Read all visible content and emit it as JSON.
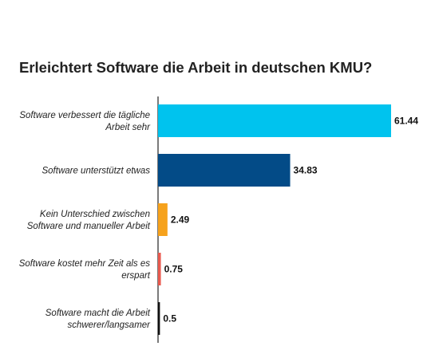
{
  "chart_data": {
    "type": "bar",
    "orientation": "horizontal",
    "title": "Erleichtert Software die Arbeit in deutschen KMU?",
    "categories": [
      [
        "Software verbessert die tägliche",
        "Arbeit sehr"
      ],
      [
        "Software unterstützt etwas"
      ],
      [
        "Kein Unterschied zwischen",
        "Software und manueller Arbeit"
      ],
      [
        "Software kostet mehr Zeit als es",
        "erspart"
      ],
      [
        "Software macht die Arbeit",
        "schwerer/langsamer"
      ]
    ],
    "values": [
      61.44,
      34.83,
      2.49,
      0.75,
      0.5
    ],
    "value_labels": [
      "61.44",
      "34.83",
      "2.49",
      "0.75",
      "0.5"
    ],
    "colors": [
      "#00c3ee",
      "#034b87",
      "#f6a21c",
      "#ea5a4f",
      "#111111"
    ],
    "xlim": [
      0,
      65
    ],
    "grid": false,
    "legend": "none"
  }
}
